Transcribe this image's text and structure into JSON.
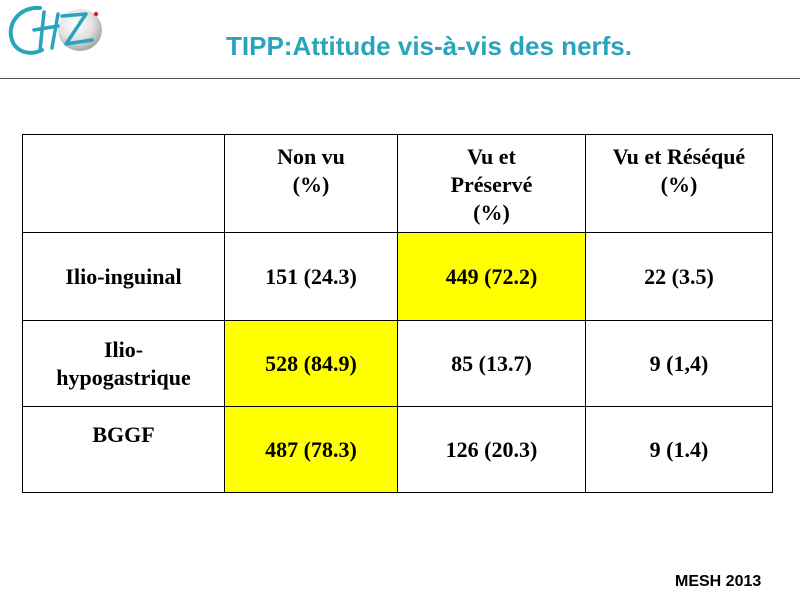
{
  "header": {
    "title": "TIPP:Attitude vis-à-vis des nerfs."
  },
  "colors": {
    "title": "#2aa4bd",
    "highlight": "#ffff00",
    "logo_teal": "#2aa4bd",
    "logo_red": "#e0242a"
  },
  "logo": {
    "icon": "chz-hospital-logo-icon",
    "letters": "CHZ"
  },
  "table": {
    "columns": [
      "",
      "Non vu\n(%)",
      "Vu et\nPréservé\n(%)",
      "Vu et Réséqué\n(%)"
    ],
    "rows": [
      {
        "label": "Ilio-inguinal",
        "cells": [
          "151 (24.3)",
          "449 (72.2)",
          "22 (3.5)"
        ],
        "highlight": [
          false,
          true,
          false
        ]
      },
      {
        "label": "Ilio-\nhypogastrique",
        "cells": [
          "528 (84.9)",
          "85 (13.7)",
          "9 (1,4)"
        ],
        "highlight": [
          true,
          false,
          false
        ]
      },
      {
        "label": "BGGF",
        "cells": [
          "487 (78.3)",
          "126 (20.3)",
          "9 (1.4)"
        ],
        "highlight": [
          true,
          false,
          false
        ]
      }
    ]
  },
  "footer": {
    "text": "MESH 2013"
  }
}
